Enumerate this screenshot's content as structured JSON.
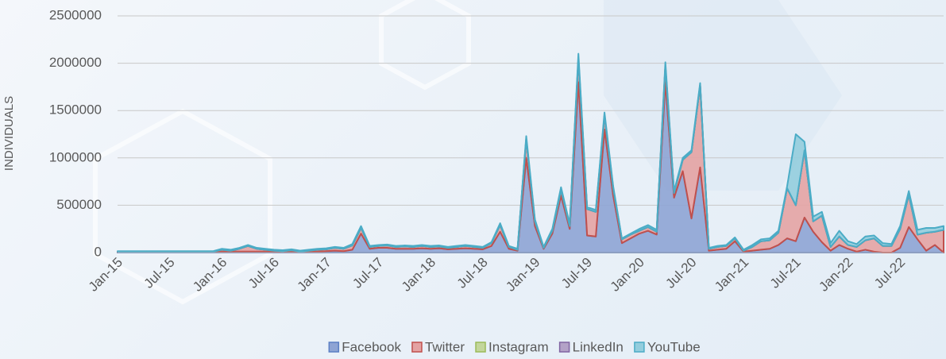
{
  "chart_data": {
    "type": "stacked_area",
    "y_label": "INDIVIDUALS",
    "categories": [
      "Jan-15",
      null,
      null,
      null,
      null,
      null,
      "Jul-15",
      null,
      null,
      null,
      null,
      null,
      "Jan-16",
      null,
      null,
      null,
      null,
      null,
      "Jul-16",
      null,
      null,
      null,
      null,
      null,
      "Jan-17",
      null,
      null,
      null,
      null,
      null,
      "Jul-17",
      null,
      null,
      null,
      null,
      null,
      "Jan-18",
      null,
      null,
      null,
      null,
      null,
      "Jul-18",
      null,
      null,
      null,
      null,
      null,
      "Jan-19",
      null,
      null,
      null,
      null,
      null,
      "Jul-19",
      null,
      null,
      null,
      null,
      null,
      "Jan-20",
      null,
      null,
      null,
      null,
      null,
      "Jul-20",
      null,
      null,
      null,
      null,
      null,
      "Jan-21",
      null,
      null,
      null,
      null,
      null,
      "Jul-21",
      null,
      null,
      null,
      null,
      null,
      "Jan-22",
      null,
      null,
      null,
      null,
      null,
      "Jul-22",
      null,
      null,
      null,
      null,
      null
    ],
    "series": [
      {
        "name": "Facebook",
        "color": "#8ea4d4",
        "line_color": "#5b7fc4",
        "values": [
          5000,
          5000,
          5000,
          5000,
          5000,
          5000,
          5000,
          5000,
          5000,
          5000,
          5000,
          5000,
          10000,
          10000,
          10000,
          10000,
          10000,
          10000,
          10000,
          10000,
          10000,
          10000,
          10000,
          10000,
          15000,
          20000,
          15000,
          30000,
          200000,
          40000,
          50000,
          50000,
          40000,
          40000,
          40000,
          45000,
          40000,
          45000,
          35000,
          40000,
          45000,
          40000,
          35000,
          70000,
          220000,
          40000,
          20000,
          1000000,
          280000,
          40000,
          200000,
          600000,
          250000,
          1800000,
          180000,
          170000,
          1300000,
          600000,
          100000,
          150000,
          200000,
          230000,
          190000,
          1800000,
          580000,
          860000,
          360000,
          900000,
          20000,
          30000,
          40000,
          120000,
          10000,
          20000,
          30000,
          40000,
          80000,
          150000,
          120000,
          370000,
          220000,
          110000,
          20000,
          80000,
          40000,
          10000,
          30000,
          10000,
          0,
          0,
          50000,
          270000,
          140000,
          20000,
          80000,
          0
        ]
      },
      {
        "name": "Twitter",
        "color": "#e4a3a3",
        "line_color": "#c0504d",
        "values": [
          5000,
          5000,
          5000,
          5000,
          5000,
          5000,
          5000,
          5000,
          5000,
          5000,
          5000,
          5000,
          20000,
          10000,
          30000,
          60000,
          30000,
          20000,
          10000,
          5000,
          15000,
          0,
          10000,
          20000,
          20000,
          30000,
          25000,
          45000,
          60000,
          20000,
          20000,
          25000,
          20000,
          25000,
          20000,
          25000,
          20000,
          20000,
          15000,
          20000,
          25000,
          20000,
          15000,
          30000,
          70000,
          20000,
          10000,
          200000,
          50000,
          10000,
          30000,
          60000,
          30000,
          250000,
          280000,
          260000,
          150000,
          80000,
          40000,
          40000,
          30000,
          40000,
          30000,
          170000,
          50000,
          120000,
          700000,
          870000,
          20000,
          30000,
          30000,
          30000,
          10000,
          40000,
          90000,
          90000,
          130000,
          530000,
          380000,
          710000,
          110000,
          280000,
          40000,
          90000,
          40000,
          50000,
          100000,
          140000,
          70000,
          70000,
          200000,
          340000,
          50000,
          190000,
          140000,
          240000
        ]
      },
      {
        "name": "Instagram",
        "color": "#c3d69b",
        "line_color": "#9bbb59",
        "values": [
          0,
          0,
          0,
          0,
          0,
          0,
          0,
          0,
          0,
          0,
          0,
          0,
          0,
          0,
          0,
          0,
          0,
          0,
          0,
          0,
          0,
          0,
          0,
          0,
          0,
          0,
          0,
          0,
          0,
          0,
          0,
          0,
          0,
          0,
          0,
          0,
          0,
          0,
          0,
          0,
          0,
          0,
          0,
          0,
          0,
          0,
          0,
          0,
          0,
          0,
          0,
          0,
          0,
          0,
          0,
          0,
          0,
          0,
          0,
          0,
          0,
          0,
          0,
          0,
          0,
          0,
          0,
          0,
          0,
          0,
          0,
          0,
          0,
          0,
          0,
          0,
          0,
          0,
          0,
          0,
          0,
          0,
          0,
          0,
          0,
          0,
          0,
          0,
          0,
          0,
          0,
          0,
          0,
          0,
          0,
          0
        ]
      },
      {
        "name": "LinkedIn",
        "color": "#b3a2c7",
        "line_color": "#8064a2",
        "values": [
          0,
          0,
          0,
          0,
          0,
          0,
          0,
          0,
          0,
          0,
          0,
          0,
          0,
          0,
          0,
          0,
          0,
          0,
          0,
          0,
          0,
          0,
          0,
          0,
          0,
          0,
          0,
          0,
          0,
          0,
          0,
          0,
          0,
          0,
          0,
          0,
          0,
          0,
          0,
          0,
          0,
          0,
          0,
          0,
          0,
          0,
          0,
          0,
          0,
          0,
          0,
          0,
          0,
          0,
          0,
          0,
          0,
          0,
          0,
          0,
          0,
          0,
          0,
          0,
          0,
          0,
          0,
          0,
          0,
          0,
          0,
          0,
          0,
          0,
          0,
          0,
          0,
          0,
          0,
          0,
          0,
          0,
          0,
          0,
          0,
          0,
          0,
          0,
          0,
          0,
          0,
          0,
          0,
          0,
          0,
          0
        ]
      },
      {
        "name": "YouTube",
        "color": "#93cddd",
        "line_color": "#4bacc6",
        "values": [
          5000,
          5000,
          5000,
          5000,
          5000,
          5000,
          5000,
          5000,
          5000,
          5000,
          5000,
          5000,
          10000,
          10000,
          10000,
          10000,
          10000,
          10000,
          10000,
          10000,
          10000,
          10000,
          10000,
          10000,
          10000,
          10000,
          10000,
          15000,
          20000,
          10000,
          10000,
          10000,
          10000,
          10000,
          10000,
          10000,
          10000,
          10000,
          10000,
          10000,
          10000,
          10000,
          10000,
          10000,
          20000,
          10000,
          10000,
          30000,
          20000,
          10000,
          20000,
          30000,
          20000,
          50000,
          20000,
          20000,
          30000,
          20000,
          10000,
          10000,
          20000,
          20000,
          20000,
          40000,
          20000,
          20000,
          20000,
          20000,
          10000,
          10000,
          10000,
          10000,
          10000,
          20000,
          20000,
          20000,
          20000,
          20000,
          750000,
          90000,
          50000,
          40000,
          40000,
          60000,
          40000,
          30000,
          40000,
          30000,
          30000,
          20000,
          30000,
          40000,
          50000,
          50000,
          40000,
          40000
        ]
      }
    ],
    "ylim": [
      0,
      2500000
    ],
    "yticks": [
      0,
      500000,
      1000000,
      1500000,
      2000000,
      2500000
    ],
    "grid": true,
    "legend": "bottom"
  }
}
